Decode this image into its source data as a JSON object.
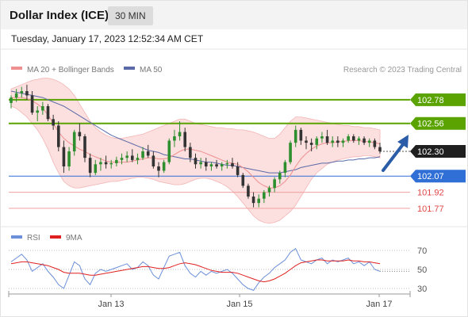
{
  "header": {
    "title": "Dollar Index (ICE)",
    "timeframe": "30 MIN"
  },
  "datetime": "Tuesday, January 17, 2023 12:52:34 AM CET",
  "legend": {
    "ma20_bb": "MA 20 + Bollinger Bands",
    "ma50": "MA 50",
    "rsi": "RSI",
    "rsi_ma": "9MA"
  },
  "copyright": "Research © 2023 Trading Central",
  "colors": {
    "green": "#5aa300",
    "blue": "#2f6fd6",
    "red": "#e04545",
    "bb_fill": "#fbd9d9",
    "ma20": "#ef8f8f",
    "ma50": "#5a6aa8",
    "up": "#2e8f2e",
    "down": "#333333",
    "rsi": "#6b8fd8",
    "rsi_ma": "#e02020",
    "arrow": "#2a5ca8"
  },
  "chart_data": [
    {
      "type": "line",
      "name": "price",
      "x_ticks": [
        "Jan 13",
        "Jan 15",
        "Jan 17"
      ],
      "ylim": [
        101.6,
        103.0
      ],
      "last_price": 102.3,
      "levels": [
        {
          "value": 102.78,
          "label": "102.78",
          "kind": "resistance"
        },
        {
          "value": 102.56,
          "label": "102.56",
          "kind": "resistance"
        },
        {
          "value": 102.07,
          "label": "102.07",
          "kind": "support"
        },
        {
          "value": 101.92,
          "label": "101.92",
          "kind": "support"
        },
        {
          "value": 101.77,
          "label": "101.77",
          "kind": "support"
        }
      ],
      "candles": [
        [
          102.75,
          102.82,
          102.7,
          102.8
        ],
        [
          102.8,
          102.88,
          102.76,
          102.84
        ],
        [
          102.84,
          102.9,
          102.8,
          102.86
        ],
        [
          102.86,
          102.92,
          102.78,
          102.82
        ],
        [
          102.82,
          102.86,
          102.64,
          102.66
        ],
        [
          102.66,
          102.72,
          102.58,
          102.68
        ],
        [
          102.68,
          102.76,
          102.64,
          102.72
        ],
        [
          102.72,
          102.74,
          102.58,
          102.6
        ],
        [
          102.6,
          102.64,
          102.5,
          102.54
        ],
        [
          102.54,
          102.58,
          102.3,
          102.34
        ],
        [
          102.34,
          102.4,
          102.1,
          102.16
        ],
        [
          102.16,
          102.34,
          102.12,
          102.3
        ],
        [
          102.3,
          102.5,
          102.26,
          102.48
        ],
        [
          102.48,
          102.56,
          102.4,
          102.44
        ],
        [
          102.44,
          102.46,
          102.2,
          102.24
        ],
        [
          102.24,
          102.28,
          102.06,
          102.1
        ],
        [
          102.1,
          102.22,
          102.08,
          102.18
        ],
        [
          102.18,
          102.24,
          102.12,
          102.2
        ],
        [
          102.2,
          102.26,
          102.14,
          102.18
        ],
        [
          102.18,
          102.22,
          102.14,
          102.19
        ],
        [
          102.19,
          102.25,
          102.16,
          102.22
        ],
        [
          102.22,
          102.28,
          102.18,
          102.24
        ],
        [
          102.24,
          102.3,
          102.2,
          102.26
        ],
        [
          102.26,
          102.32,
          102.2,
          102.22
        ],
        [
          102.22,
          102.28,
          102.18,
          102.24
        ],
        [
          102.24,
          102.34,
          102.22,
          102.3
        ],
        [
          102.3,
          102.36,
          102.24,
          102.26
        ],
        [
          102.26,
          102.3,
          102.14,
          102.16
        ],
        [
          102.16,
          102.2,
          102.06,
          102.12
        ],
        [
          102.12,
          102.22,
          102.1,
          102.2
        ],
        [
          102.2,
          102.42,
          102.18,
          102.4
        ],
        [
          102.4,
          102.5,
          102.34,
          102.44
        ],
        [
          102.44,
          102.58,
          102.4,
          102.48
        ],
        [
          102.48,
          102.52,
          102.3,
          102.34
        ],
        [
          102.34,
          102.38,
          102.2,
          102.24
        ],
        [
          102.24,
          102.28,
          102.14,
          102.18
        ],
        [
          102.18,
          102.24,
          102.14,
          102.2
        ],
        [
          102.2,
          102.24,
          102.12,
          102.16
        ],
        [
          102.16,
          102.2,
          102.12,
          102.18
        ],
        [
          102.18,
          102.22,
          102.14,
          102.16
        ],
        [
          102.16,
          102.2,
          102.12,
          102.18
        ],
        [
          102.18,
          102.22,
          102.14,
          102.19
        ],
        [
          102.19,
          102.24,
          102.14,
          102.16
        ],
        [
          102.16,
          102.2,
          102.06,
          102.08
        ],
        [
          102.08,
          102.1,
          101.96,
          101.98
        ],
        [
          101.98,
          102.0,
          101.86,
          101.88
        ],
        [
          101.88,
          101.92,
          101.78,
          101.82
        ],
        [
          101.82,
          101.9,
          101.78,
          101.86
        ],
        [
          101.86,
          101.94,
          101.82,
          101.92
        ],
        [
          101.92,
          101.98,
          101.88,
          101.96
        ],
        [
          101.96,
          102.06,
          101.92,
          102.04
        ],
        [
          102.04,
          102.12,
          102.0,
          102.1
        ],
        [
          102.1,
          102.22,
          102.06,
          102.2
        ],
        [
          102.2,
          102.4,
          102.18,
          102.38
        ],
        [
          102.38,
          102.54,
          102.34,
          102.5
        ],
        [
          102.5,
          102.52,
          102.36,
          102.4
        ],
        [
          102.4,
          102.44,
          102.32,
          102.38
        ],
        [
          102.38,
          102.42,
          102.3,
          102.36
        ],
        [
          102.36,
          102.44,
          102.32,
          102.42
        ],
        [
          102.42,
          102.48,
          102.38,
          102.44
        ],
        [
          102.44,
          102.5,
          102.36,
          102.38
        ],
        [
          102.38,
          102.44,
          102.34,
          102.4
        ],
        [
          102.4,
          102.44,
          102.34,
          102.38
        ],
        [
          102.38,
          102.42,
          102.34,
          102.4
        ],
        [
          102.4,
          102.46,
          102.38,
          102.44
        ],
        [
          102.44,
          102.46,
          102.38,
          102.4
        ],
        [
          102.4,
          102.44,
          102.36,
          102.42
        ],
        [
          102.42,
          102.44,
          102.36,
          102.38
        ],
        [
          102.38,
          102.42,
          102.34,
          102.4
        ],
        [
          102.4,
          102.42,
          102.32,
          102.34
        ],
        [
          102.34,
          102.38,
          102.28,
          102.3
        ]
      ],
      "ma20": [
        102.8,
        102.8,
        102.8,
        102.79,
        102.77,
        102.74,
        102.7,
        102.64,
        102.56,
        102.48,
        102.42,
        102.38,
        102.35,
        102.32,
        102.3,
        102.27,
        102.25,
        102.23,
        102.21,
        102.2,
        102.2,
        102.2,
        102.2,
        102.21,
        102.22,
        102.23,
        102.24,
        102.24,
        102.23,
        102.23,
        102.24,
        102.27,
        102.3,
        102.32,
        102.32,
        102.31,
        102.3,
        102.28,
        102.26,
        102.24,
        102.22,
        102.2,
        102.19,
        102.18,
        102.15,
        102.11,
        102.06,
        102.01,
        101.98,
        101.96,
        101.96,
        101.98,
        102.02,
        102.08,
        102.16,
        102.23,
        102.28,
        102.32,
        102.35,
        102.37,
        102.38,
        102.38,
        102.39,
        102.39,
        102.4,
        102.4,
        102.4,
        102.39,
        102.39,
        102.38,
        102.37
      ],
      "ma50": [
        102.86,
        102.85,
        102.84,
        102.83,
        102.82,
        102.81,
        102.8,
        102.78,
        102.76,
        102.74,
        102.72,
        102.69,
        102.66,
        102.63,
        102.6,
        102.57,
        102.54,
        102.51,
        102.48,
        102.45,
        102.43,
        102.41,
        102.39,
        102.37,
        102.35,
        102.33,
        102.31,
        102.3,
        102.29,
        102.27,
        102.26,
        102.25,
        102.24,
        102.23,
        102.23,
        102.22,
        102.21,
        102.2,
        102.2,
        102.19,
        102.18,
        102.17,
        102.17,
        102.16,
        102.15,
        102.14,
        102.13,
        102.12,
        102.11,
        102.1,
        102.1,
        102.1,
        102.11,
        102.12,
        102.13,
        102.15,
        102.16,
        102.17,
        102.18,
        102.19,
        102.19,
        102.2,
        102.21,
        102.21,
        102.22,
        102.22,
        102.23,
        102.23,
        102.24,
        102.24,
        102.25
      ],
      "bb_upper": [
        102.88,
        102.9,
        102.92,
        102.94,
        102.96,
        102.97,
        102.98,
        102.98,
        102.97,
        102.95,
        102.92,
        102.88,
        102.82,
        102.74,
        102.66,
        102.58,
        102.52,
        102.48,
        102.45,
        102.43,
        102.42,
        102.42,
        102.43,
        102.44,
        102.45,
        102.46,
        102.48,
        102.5,
        102.52,
        102.54,
        102.56,
        102.58,
        102.6,
        102.6,
        102.58,
        102.56,
        102.55,
        102.54,
        102.53,
        102.52,
        102.52,
        102.51,
        102.51,
        102.5,
        102.5,
        102.49,
        102.48,
        102.46,
        102.44,
        102.42,
        102.42,
        102.46,
        102.52,
        102.58,
        102.62,
        102.62,
        102.61,
        102.6,
        102.59,
        102.58,
        102.57,
        102.56,
        102.55,
        102.54,
        102.54,
        102.53,
        102.53,
        102.52,
        102.52,
        102.51,
        102.5
      ],
      "bb_lower": [
        102.72,
        102.7,
        102.66,
        102.62,
        102.56,
        102.5,
        102.42,
        102.32,
        102.2,
        102.1,
        102.02,
        101.98,
        101.96,
        101.96,
        101.97,
        101.98,
        101.99,
        102.0,
        102.01,
        102.02,
        102.02,
        102.03,
        102.04,
        102.05,
        102.06,
        102.06,
        102.05,
        102.04,
        102.02,
        102.01,
        102.0,
        101.99,
        101.99,
        102.0,
        102.02,
        102.04,
        102.05,
        102.05,
        102.04,
        102.02,
        102.0,
        101.97,
        101.93,
        101.88,
        101.82,
        101.76,
        101.7,
        101.66,
        101.64,
        101.63,
        101.64,
        101.66,
        101.7,
        101.74,
        101.8,
        101.88,
        101.96,
        102.04,
        102.1,
        102.14,
        102.18,
        102.2,
        102.22,
        102.23,
        102.24,
        102.25,
        102.25,
        102.26,
        102.26,
        102.25,
        102.24
      ]
    },
    {
      "type": "line",
      "name": "RSI",
      "ylim": [
        20,
        80
      ],
      "y_ticks": [
        30,
        50,
        70
      ],
      "rsi": [
        58,
        62,
        66,
        60,
        48,
        52,
        56,
        48,
        42,
        34,
        30,
        44,
        58,
        54,
        40,
        34,
        46,
        50,
        48,
        50,
        52,
        54,
        56,
        50,
        52,
        58,
        54,
        44,
        40,
        52,
        64,
        66,
        68,
        54,
        46,
        42,
        48,
        44,
        48,
        46,
        48,
        50,
        46,
        40,
        34,
        30,
        28,
        36,
        42,
        46,
        52,
        56,
        60,
        68,
        72,
        60,
        58,
        56,
        60,
        62,
        56,
        60,
        58,
        60,
        62,
        56,
        58,
        54,
        58,
        50,
        48
      ],
      "rsi_ma": [
        56,
        57,
        58,
        58,
        57,
        56,
        55,
        54,
        52,
        50,
        47,
        46,
        46,
        46,
        45,
        44,
        44,
        45,
        46,
        47,
        48,
        49,
        50,
        51,
        52,
        53,
        53,
        52,
        51,
        51,
        52,
        54,
        56,
        57,
        56,
        55,
        53,
        51,
        49,
        48,
        47,
        47,
        47,
        46,
        44,
        42,
        40,
        38,
        37,
        38,
        40,
        43,
        46,
        50,
        54,
        57,
        58,
        59,
        60,
        60,
        59,
        59,
        59,
        59,
        60,
        59,
        59,
        58,
        58,
        57,
        56
      ]
    }
  ]
}
